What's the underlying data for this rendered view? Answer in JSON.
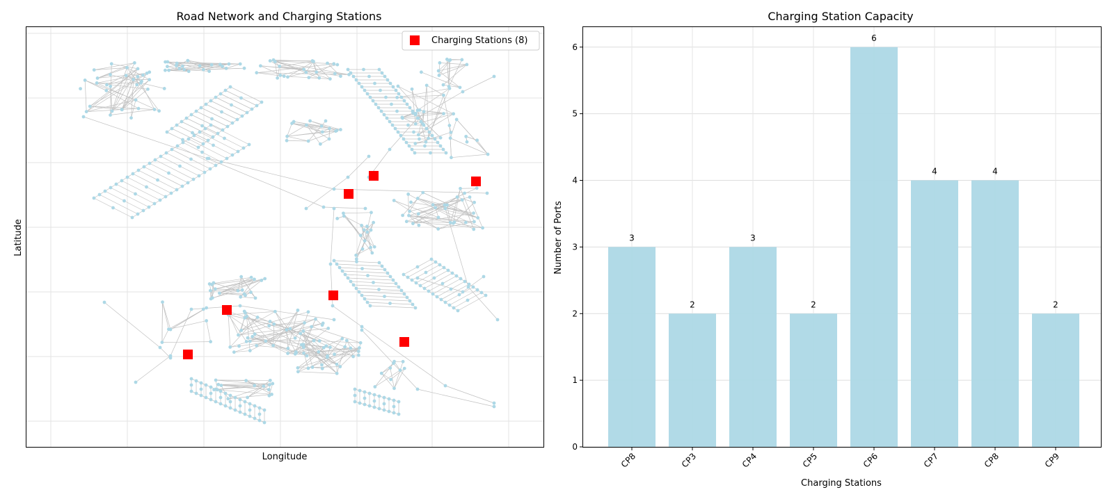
{
  "map_panel": {
    "title": "Road Network and Charging Stations",
    "xlabel": "Longitude",
    "ylabel": "Latitude",
    "legend": {
      "label": "Charging Stations (8)",
      "position": "upper right",
      "marker_color": "#ff0000"
    },
    "node_color": "#add8e6",
    "edge_color": "#c0c0c0",
    "grid": true
  },
  "chart_data": {
    "type": "bar",
    "title": "Charging Station Capacity",
    "xlabel": "Charging Stations",
    "ylabel": "Number of Ports",
    "categories": [
      "CP8",
      "CP3",
      "CP4",
      "CP5",
      "CP6",
      "CP7",
      "CP8",
      "CP9"
    ],
    "values": [
      3,
      2,
      3,
      2,
      6,
      4,
      4,
      2
    ],
    "data_labels": [
      "3",
      "2",
      "3",
      "2",
      "6",
      "4",
      "4",
      "2"
    ],
    "ylim": [
      0,
      6.3
    ],
    "yticks": [
      "0",
      "1",
      "2",
      "3",
      "4",
      "5",
      "6"
    ],
    "bar_color": "#add8e6",
    "grid": true
  }
}
